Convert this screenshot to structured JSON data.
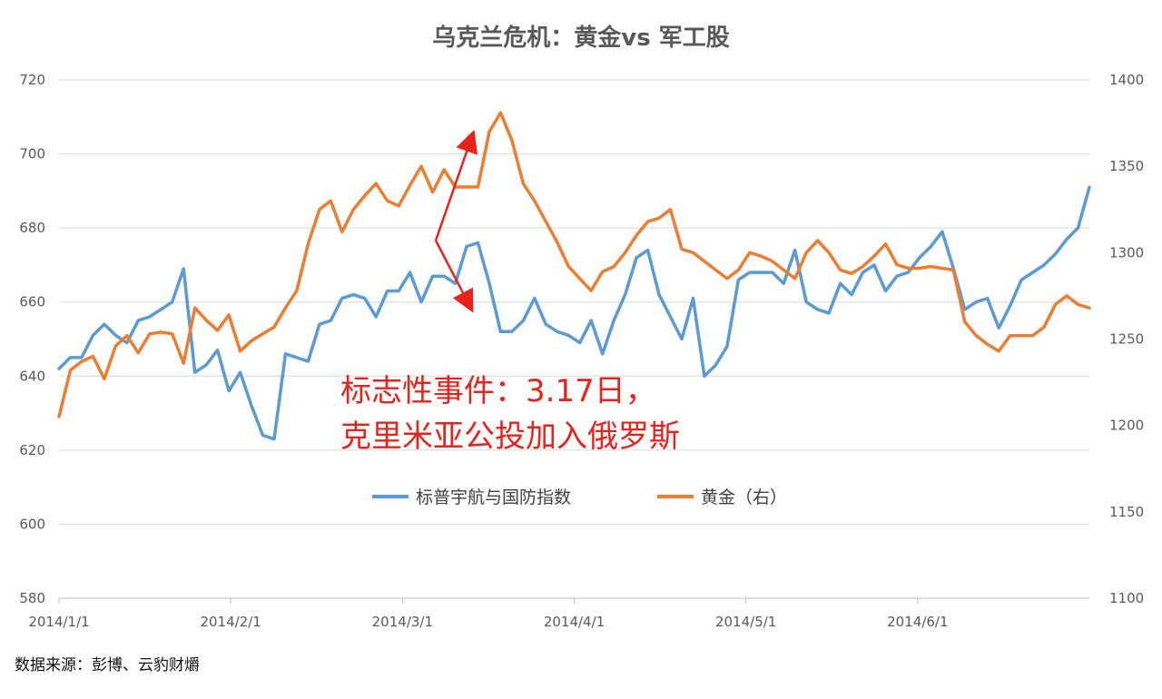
{
  "chart_data": {
    "type": "line",
    "title": "乌克兰危机：黄金vs 军工股",
    "x_tick_labels": [
      "2014/1/1",
      "2014/2/1",
      "2014/3/1",
      "2014/4/1",
      "2014/5/1",
      "2014/6/1"
    ],
    "y_left": {
      "ticks": [
        "580",
        "600",
        "620",
        "640",
        "660",
        "680",
        "700",
        "720"
      ],
      "range": [
        580,
        720
      ]
    },
    "y_right": {
      "ticks": [
        "1100",
        "1150",
        "1200",
        "1250",
        "1300",
        "1350",
        "1400"
      ],
      "range": [
        1100,
        1400
      ]
    },
    "grid": true,
    "legend_position": "center",
    "series": [
      {
        "name": "标普宇航与国防指数",
        "axis": "left",
        "color": "#5b9bd5",
        "x": [
          0,
          2,
          4,
          6,
          8,
          10,
          12,
          14,
          16,
          18,
          20,
          22,
          24,
          26,
          28,
          30,
          32,
          34,
          36,
          38,
          40,
          42,
          44,
          46,
          48,
          50,
          52,
          54,
          56,
          58,
          60,
          62,
          64,
          66,
          68,
          70,
          72,
          74,
          76,
          78,
          80,
          82,
          84,
          86,
          88,
          90,
          92,
          94,
          96,
          98,
          100,
          102,
          104,
          106,
          108,
          110,
          112,
          114,
          116,
          118,
          120,
          122,
          124,
          126,
          128,
          130,
          132,
          134,
          136,
          138,
          140,
          142,
          144,
          146,
          148,
          150,
          152,
          154,
          156,
          158,
          160,
          162,
          164,
          166,
          168,
          170,
          172,
          174,
          176,
          178,
          180,
          182
        ],
        "values": [
          642,
          645,
          645,
          651,
          654,
          651,
          649,
          655,
          656,
          658,
          660,
          669,
          641,
          643,
          647,
          636,
          641,
          632,
          624,
          623,
          646,
          645,
          644,
          654,
          655,
          661,
          662,
          661,
          656,
          663,
          663,
          668,
          660,
          667,
          667,
          665,
          675,
          676,
          665,
          652,
          652,
          655,
          661,
          654,
          652,
          651,
          649,
          655,
          646,
          655,
          662,
          672,
          674,
          662,
          656,
          650,
          661,
          640,
          643,
          648,
          666,
          668,
          668,
          668,
          665,
          674,
          660,
          658,
          657,
          665,
          662,
          668,
          670,
          663,
          667,
          668,
          672,
          675,
          679,
          669,
          658,
          660,
          661,
          653,
          659,
          666,
          668,
          670,
          673,
          677,
          680,
          691
        ]
      },
      {
        "name": "黄金（右）",
        "axis": "right",
        "color": "#ed7d31",
        "x": [
          0,
          2,
          4,
          6,
          8,
          10,
          12,
          14,
          16,
          18,
          20,
          22,
          24,
          26,
          28,
          30,
          32,
          34,
          36,
          38,
          40,
          42,
          44,
          46,
          48,
          50,
          52,
          54,
          56,
          58,
          60,
          62,
          64,
          66,
          68,
          70,
          72,
          74,
          76,
          78,
          80,
          82,
          84,
          86,
          88,
          90,
          92,
          94,
          96,
          98,
          100,
          102,
          104,
          106,
          108,
          110,
          112,
          114,
          116,
          118,
          120,
          122,
          124,
          126,
          128,
          130,
          132,
          134,
          136,
          138,
          140,
          142,
          144,
          146,
          148,
          150,
          152,
          154,
          156,
          158,
          160,
          162,
          164,
          166,
          168,
          170,
          172,
          174,
          176,
          178,
          180,
          182
        ],
        "values": [
          1205,
          1232,
          1237,
          1240,
          1227,
          1246,
          1252,
          1242,
          1253,
          1254,
          1253,
          1236,
          1268,
          1261,
          1255,
          1264,
          1243,
          1249,
          1253,
          1257,
          1268,
          1278,
          1305,
          1325,
          1330,
          1312,
          1325,
          1333,
          1340,
          1330,
          1327,
          1339,
          1350,
          1335,
          1348,
          1338,
          1338,
          1338,
          1370,
          1381,
          1365,
          1340,
          1330,
          1318,
          1306,
          1292,
          1285,
          1278,
          1289,
          1292,
          1300,
          1310,
          1318,
          1320,
          1325,
          1302,
          1300,
          1295,
          1290,
          1285,
          1290,
          1300,
          1298,
          1295,
          1290,
          1285,
          1300,
          1307,
          1300,
          1290,
          1288,
          1292,
          1298,
          1305,
          1293,
          1291,
          1291,
          1292,
          1291,
          1290,
          1260,
          1252,
          1247,
          1243,
          1252,
          1252,
          1252,
          1257,
          1270,
          1275,
          1270,
          1268
        ]
      }
    ],
    "annotations": [
      {
        "text": "标志性事件：3.17日，"
      },
      {
        "text": "克里米亚公投加入俄罗斯"
      }
    ],
    "source": "数据来源：彭博、云豹财爝"
  }
}
